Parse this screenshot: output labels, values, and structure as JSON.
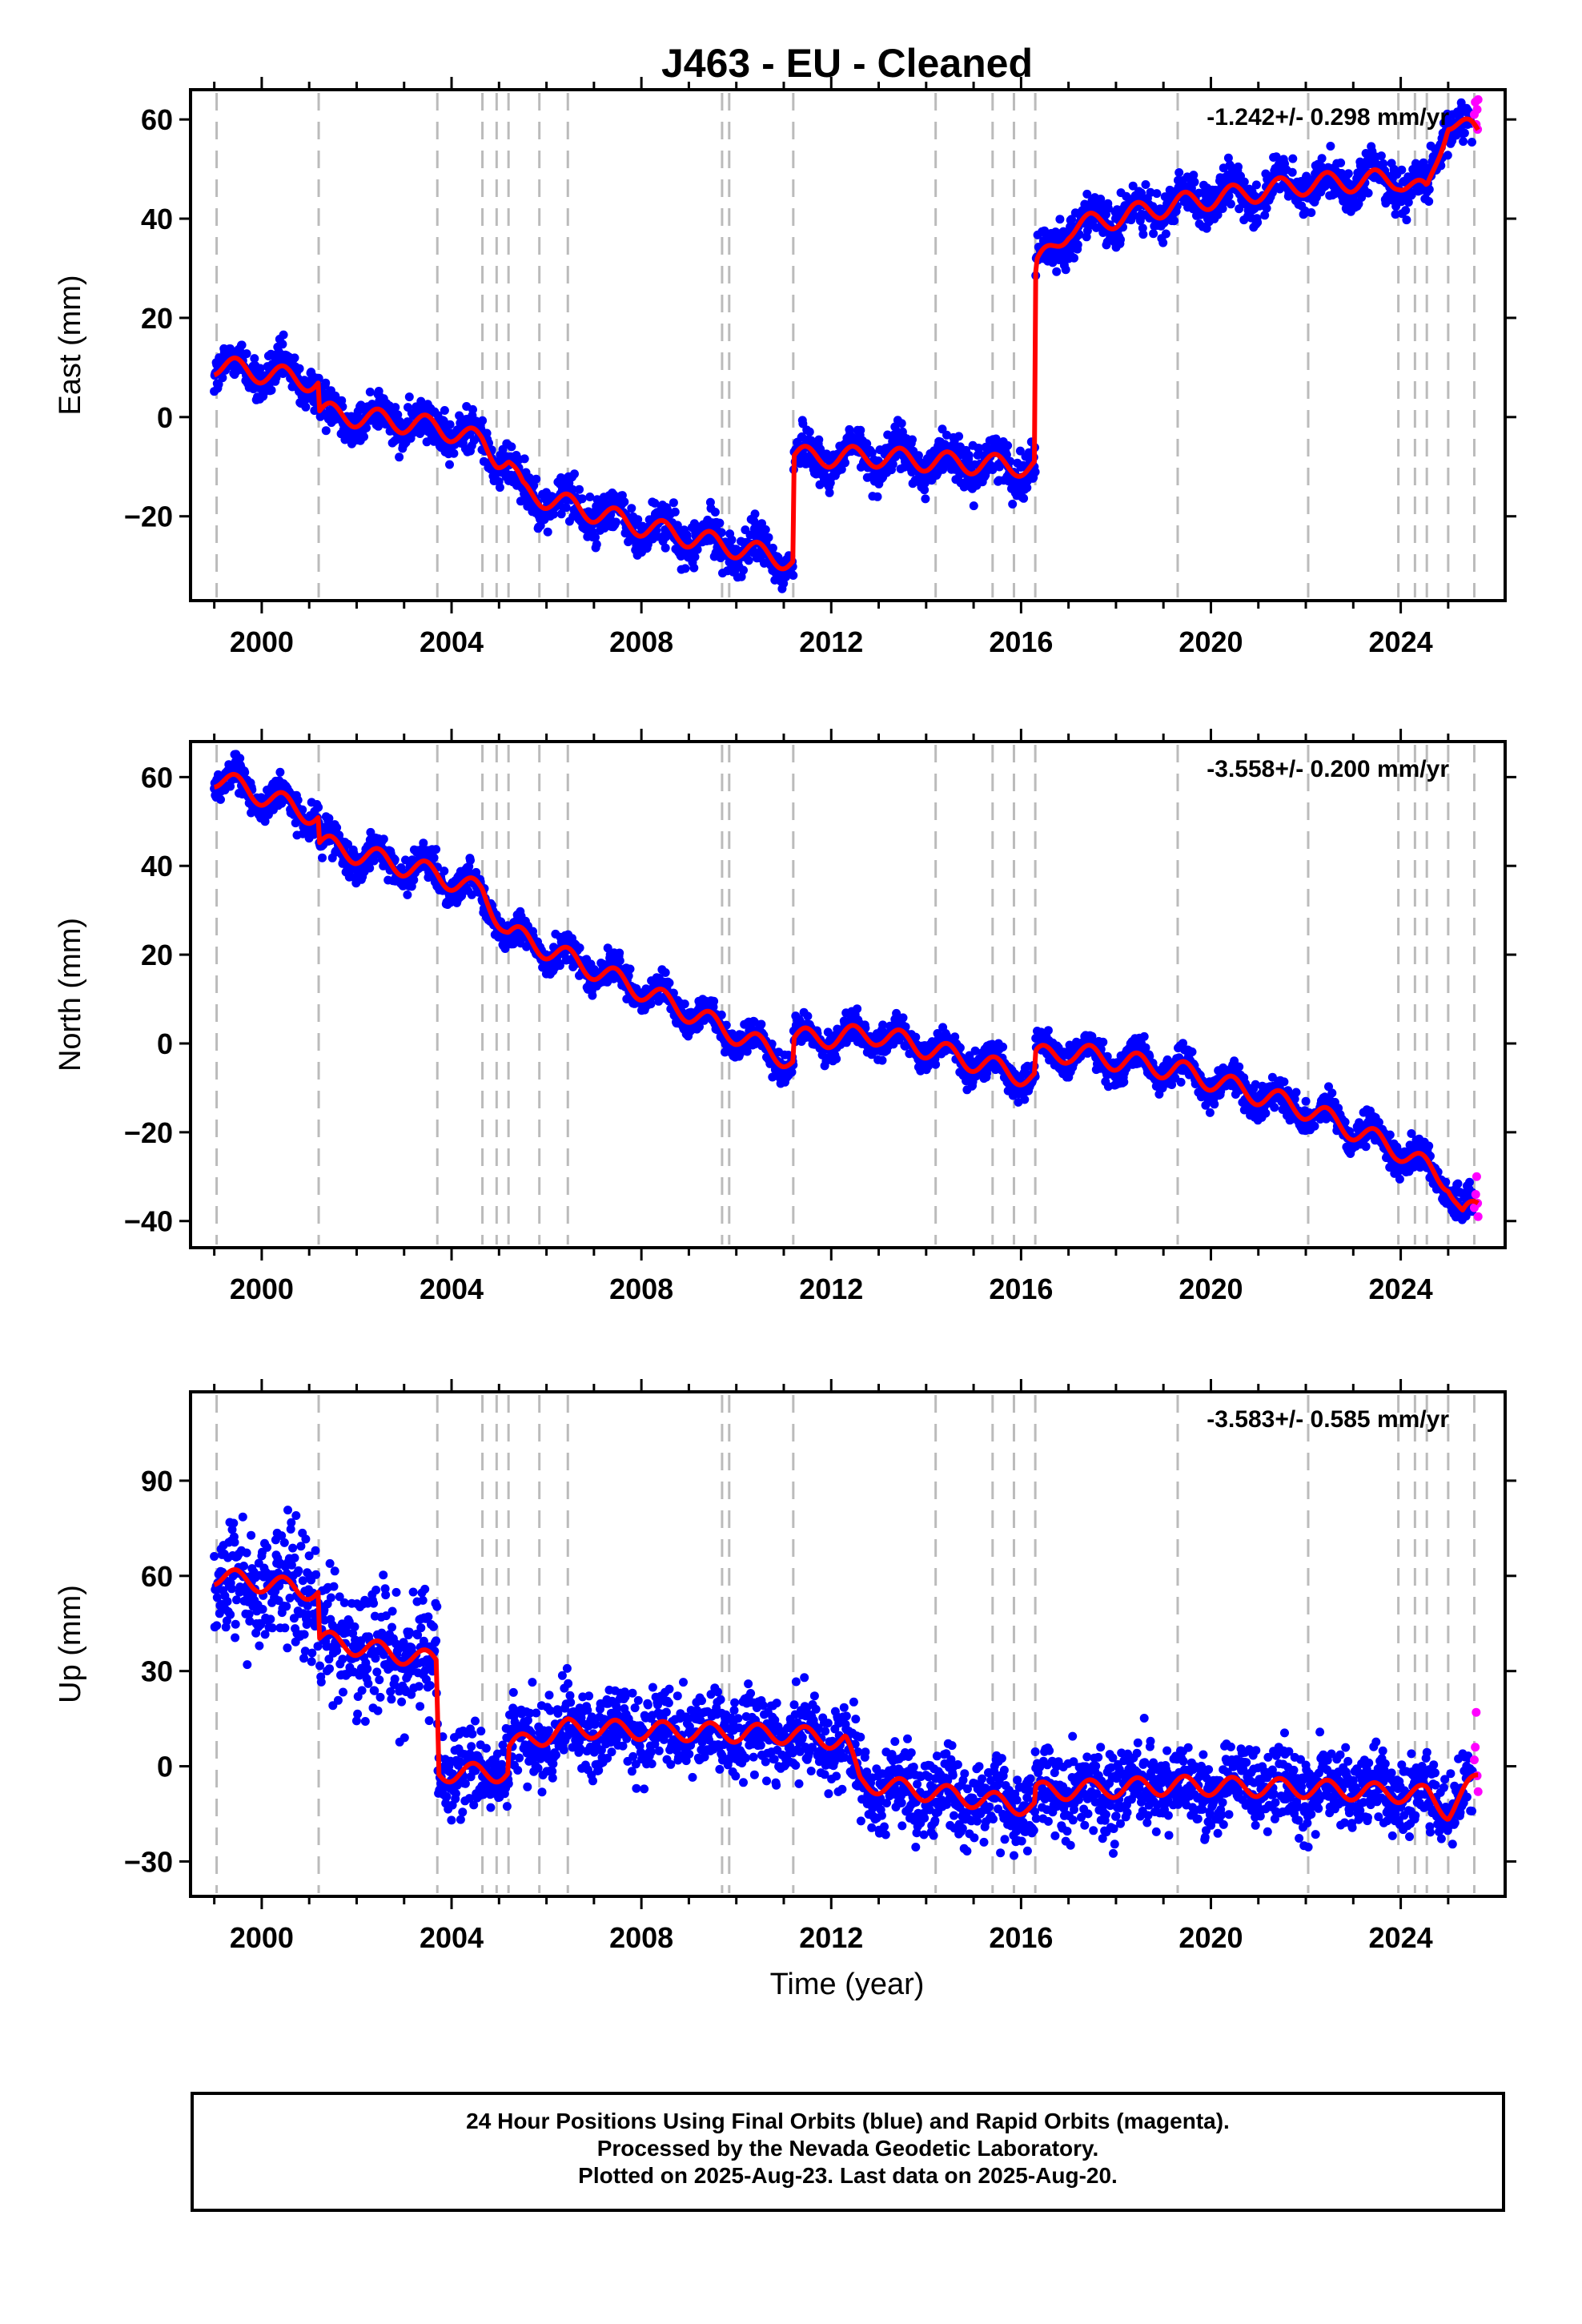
{
  "chart_data": {
    "type": "scatter",
    "title": "J463  - EU - Cleaned",
    "xlabel": "Time (year)",
    "xlim": [
      1998.5,
      2026.2
    ],
    "xticks": [
      2000,
      2004,
      2008,
      2012,
      2016,
      2020,
      2024
    ],
    "xtick_labels": [
      "2000",
      "2004",
      "2008",
      "2012",
      "2016",
      "2020",
      "2024"
    ],
    "data_start": 1999.0,
    "data_end": 2025.63,
    "equipment_change_lines": [
      1999.05,
      2001.2,
      2003.7,
      2004.65,
      2004.95,
      2005.2,
      2005.85,
      2006.45,
      2009.7,
      2009.85,
      2011.2,
      2014.2,
      2015.4,
      2015.85,
      2016.3,
      2019.3,
      2022.05,
      2023.95,
      2024.3,
      2024.55,
      2025.0,
      2025.55
    ],
    "colors": {
      "final_orbits": "#0000ff",
      "rapid_orbits": "#ff00ff",
      "model": "#ff0000",
      "event_lines": "#bbbbbb"
    },
    "panels": [
      {
        "component": "east",
        "ylabel": "East (mm)",
        "ylim": [
          -37,
          66
        ],
        "yticks": [
          -20,
          0,
          20,
          40,
          60
        ],
        "ytick_labels": [
          "−20",
          "0",
          "20",
          "40",
          "60"
        ],
        "rate_label": "-1.242+/- 0.298 mm/yr",
        "model_trace": [
          [
            1999.0,
            10.5
          ],
          [
            2001.2,
            7
          ],
          [
            2001.21,
            1
          ],
          [
            2003.7,
            -2
          ],
          [
            2004.65,
            -5
          ],
          [
            2004.95,
            -8
          ],
          [
            2005.2,
            -9
          ],
          [
            2005.5,
            -15
          ],
          [
            2008,
            -22
          ],
          [
            2011.2,
            -29
          ],
          [
            2011.21,
            -8
          ],
          [
            2013,
            -8
          ],
          [
            2014.2,
            -9
          ],
          [
            2016.3,
            -10
          ],
          [
            2016.31,
            30
          ],
          [
            2017,
            38
          ],
          [
            2019.3,
            43
          ],
          [
            2022.05,
            47
          ],
          [
            2023.95,
            48
          ],
          [
            2024.55,
            45
          ],
          [
            2025.0,
            60
          ],
          [
            2025.63,
            57
          ]
        ],
        "seasonal_amplitude": 2.5,
        "scatter_sd": 2.2,
        "rapid_points": [
          [
            2025.55,
            61
          ],
          [
            2025.57,
            63.5
          ],
          [
            2025.59,
            59
          ],
          [
            2025.61,
            62
          ],
          [
            2025.62,
            58
          ],
          [
            2025.63,
            64
          ]
        ]
      },
      {
        "component": "north",
        "ylabel": "North (mm)",
        "ylim": [
          -46,
          68
        ],
        "yticks": [
          -40,
          -20,
          0,
          20,
          40,
          60
        ],
        "ytick_labels": [
          "−40",
          "−20",
          "0",
          "20",
          "40",
          "60"
        ],
        "rate_label": "-3.558+/- 0.200 mm/yr",
        "model_trace": [
          [
            1999.0,
            60
          ],
          [
            2001.2,
            51
          ],
          [
            2001.21,
            45
          ],
          [
            2003.7,
            38
          ],
          [
            2004.65,
            34
          ],
          [
            2005.2,
            25
          ],
          [
            2008,
            12
          ],
          [
            2011.2,
            -4
          ],
          [
            2011.21,
            1
          ],
          [
            2013,
            2
          ],
          [
            2016.3,
            -8
          ],
          [
            2016.31,
            -3
          ],
          [
            2017,
            -2
          ],
          [
            2019.3,
            -6
          ],
          [
            2022.05,
            -15
          ],
          [
            2023.95,
            -24
          ],
          [
            2025.0,
            -31
          ],
          [
            2025.3,
            -39
          ],
          [
            2025.63,
            -37
          ]
        ],
        "seasonal_amplitude": 2.8,
        "scatter_sd": 1.8,
        "rapid_points": [
          [
            2025.55,
            -37
          ],
          [
            2025.58,
            -34
          ],
          [
            2025.6,
            -30
          ],
          [
            2025.62,
            -36
          ],
          [
            2025.63,
            -39
          ]
        ]
      },
      {
        "component": "up",
        "ylabel": "Up (mm)",
        "ylim": [
          -41,
          118
        ],
        "yticks": [
          -30,
          0,
          30,
          60,
          90
        ],
        "ytick_labels": [
          "−30",
          "0",
          "30",
          "60",
          "90"
        ],
        "rate_label": "-3.583+/- 0.585 mm/yr",
        "model_trace": [
          [
            1999.0,
            60
          ],
          [
            2001.2,
            55
          ],
          [
            2001.21,
            40
          ],
          [
            2003.7,
            33
          ],
          [
            2003.71,
            -2
          ],
          [
            2005.2,
            -2
          ],
          [
            2005.21,
            6
          ],
          [
            2006.45,
            12
          ],
          [
            2011.2,
            10
          ],
          [
            2012.3,
            8
          ],
          [
            2012.6,
            -5
          ],
          [
            2016.3,
            -13
          ],
          [
            2016.31,
            -8
          ],
          [
            2019.3,
            -6
          ],
          [
            2022.05,
            -7
          ],
          [
            2024.55,
            -9
          ],
          [
            2025.0,
            -14
          ],
          [
            2025.63,
            -4
          ]
        ],
        "seasonal_amplitude": 3.5,
        "scatter_sd": 6.5,
        "rapid_points": [
          [
            2025.55,
            2
          ],
          [
            2025.57,
            6
          ],
          [
            2025.59,
            17
          ],
          [
            2025.61,
            -3
          ],
          [
            2025.63,
            -8
          ]
        ]
      }
    ]
  },
  "footer": {
    "line1": "24 Hour Positions Using Final Orbits (blue) and Rapid Orbits (magenta).",
    "line2": "Processed by the Nevada Geodetic Laboratory.",
    "line3": "Plotted on 2025-Aug-23. Last data on 2025-Aug-20."
  }
}
